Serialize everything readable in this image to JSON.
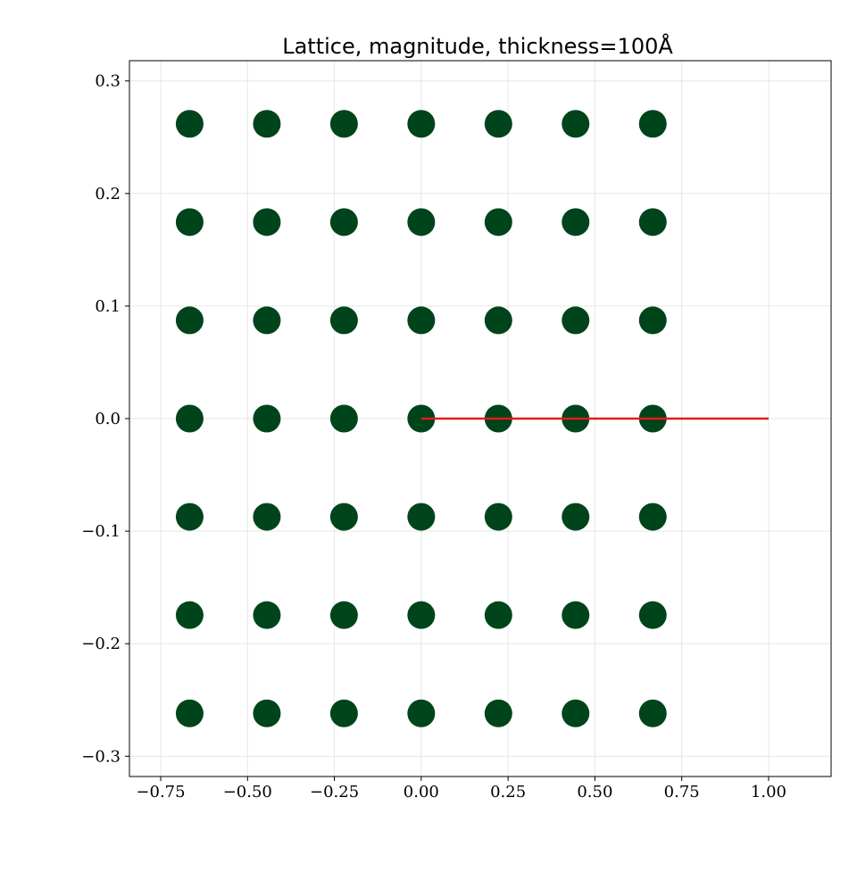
{
  "chart_data": {
    "type": "scatter",
    "title": "Lattice, magnitude, thickness=100Å",
    "xlabel": "",
    "ylabel": "",
    "xlim": [
      -0.84,
      1.18
    ],
    "ylim": [
      -0.318,
      0.318
    ],
    "grid": true,
    "x_ticks": [
      -0.75,
      -0.5,
      -0.25,
      0.0,
      0.25,
      0.5,
      0.75,
      1.0
    ],
    "x_tick_labels": [
      "−0.75",
      "−0.50",
      "−0.25",
      "0.00",
      "0.25",
      "0.50",
      "0.75",
      "1.00"
    ],
    "y_ticks": [
      0.3,
      0.2,
      0.1,
      0.0,
      -0.1,
      -0.2,
      -0.3
    ],
    "y_tick_labels": [
      "0.3",
      "0.2",
      "0.1",
      "0.0",
      "−0.1",
      "−0.2",
      "−0.3"
    ],
    "lattice": {
      "x": [
        -0.6667,
        -0.4444,
        -0.2222,
        0.0,
        0.2222,
        0.4444,
        0.6667
      ],
      "y": [
        0.2619,
        0.1746,
        0.0873,
        0.0,
        -0.0873,
        -0.1746,
        -0.2619
      ],
      "color": "#00441b"
    },
    "line": {
      "x": [
        0.0,
        1.0
      ],
      "y": [
        0.0,
        0.0
      ],
      "color": "#e41a1c"
    }
  }
}
